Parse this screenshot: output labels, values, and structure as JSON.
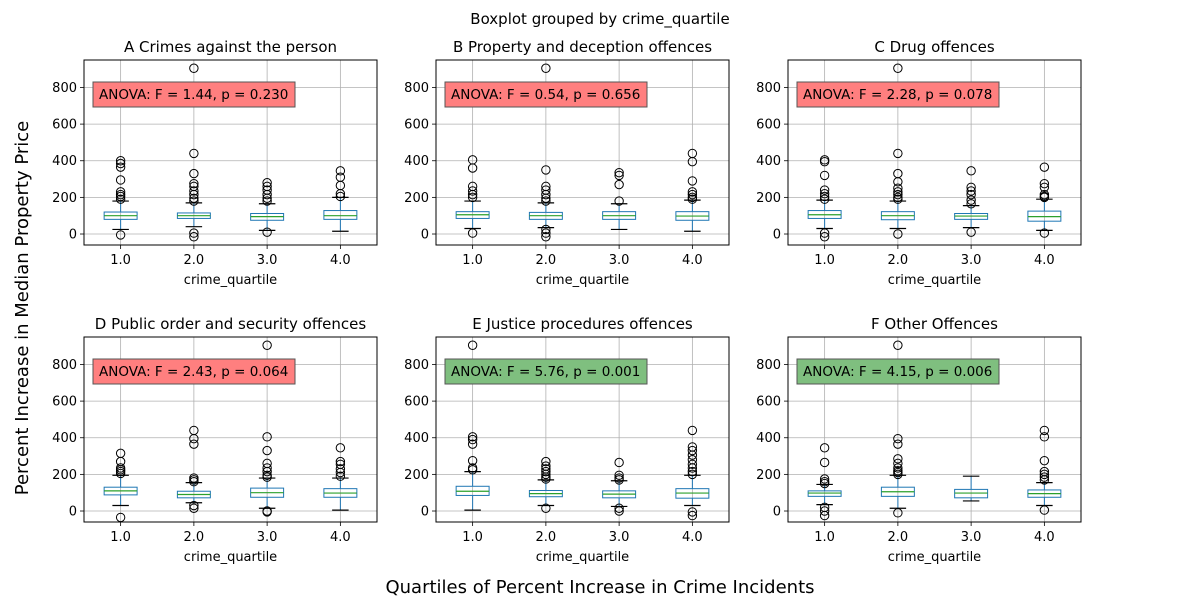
{
  "figure": {
    "suptitle": "Boxplot grouped by crime_quartile",
    "supylabel": "Percent Increase in Median Property Price",
    "supxlabel": "Quartiles of Percent Increase in Crime Incidents"
  },
  "colors": {
    "box": "#1f77b4",
    "median": "#2ca02c",
    "whisker": "#000000",
    "grid": "#b0b0b0",
    "anova_nonsig": "#ff7f7f",
    "anova_sig": "#7fbf7f"
  },
  "chart_data": [
    {
      "type": "box",
      "title": "A Crimes against the person",
      "xlabel": "crime_quartile",
      "categories": [
        "1.0",
        "2.0",
        "3.0",
        "4.0"
      ],
      "ylim": [
        -60,
        950
      ],
      "yticks": [
        0,
        200,
        400,
        600,
        800
      ],
      "grid": true,
      "annotation": "ANOVA: F = 1.44, p = 0.230",
      "significant": false,
      "boxes": [
        {
          "whislo": 25,
          "q1": 80,
          "med": 100,
          "q3": 120,
          "whishi": 180,
          "fliers": [
            -5,
            190,
            205,
            215,
            230,
            295,
            365,
            385,
            400
          ]
        },
        {
          "whislo": 40,
          "q1": 85,
          "med": 100,
          "q3": 115,
          "whishi": 170,
          "fliers": [
            -15,
            5,
            180,
            195,
            215,
            235,
            260,
            275,
            330,
            440,
            905
          ]
        },
        {
          "whislo": 20,
          "q1": 75,
          "med": 95,
          "q3": 112,
          "whishi": 165,
          "fliers": [
            10,
            180,
            195,
            215,
            240,
            260,
            280
          ]
        },
        {
          "whislo": 15,
          "q1": 80,
          "med": 100,
          "q3": 128,
          "whishi": 200,
          "fliers": [
            205,
            220,
            265,
            310,
            345
          ]
        }
      ]
    },
    {
      "type": "box",
      "title": "B Property and deception offences",
      "xlabel": "crime_quartile",
      "categories": [
        "1.0",
        "2.0",
        "3.0",
        "4.0"
      ],
      "ylim": [
        -60,
        950
      ],
      "yticks": [
        0,
        200,
        400,
        600,
        800
      ],
      "grid": true,
      "annotation": "ANOVA: F = 0.54, p = 0.656",
      "significant": false,
      "boxes": [
        {
          "whislo": 30,
          "q1": 85,
          "med": 105,
          "q3": 122,
          "whishi": 180,
          "fliers": [
            5,
            200,
            215,
            235,
            260,
            360,
            405
          ]
        },
        {
          "whislo": 35,
          "q1": 80,
          "med": 100,
          "q3": 118,
          "whishi": 170,
          "fliers": [
            -15,
            5,
            25,
            180,
            195,
            215,
            240,
            260,
            350,
            905
          ]
        },
        {
          "whislo": 25,
          "q1": 80,
          "med": 100,
          "q3": 122,
          "whishi": 165,
          "fliers": [
            180,
            270,
            320,
            335
          ]
        },
        {
          "whislo": 15,
          "q1": 75,
          "med": 98,
          "q3": 122,
          "whishi": 185,
          "fliers": [
            190,
            200,
            215,
            230,
            290,
            395,
            440
          ]
        }
      ]
    },
    {
      "type": "box",
      "title": "C Drug offences",
      "xlabel": "crime_quartile",
      "categories": [
        "1.0",
        "2.0",
        "3.0",
        "4.0"
      ],
      "ylim": [
        -60,
        950
      ],
      "yticks": [
        0,
        200,
        400,
        600,
        800
      ],
      "grid": true,
      "annotation": "ANOVA: F = 2.28, p = 0.078",
      "significant": false,
      "boxes": [
        {
          "whislo": 30,
          "q1": 85,
          "med": 105,
          "q3": 128,
          "whishi": 185,
          "fliers": [
            -15,
            5,
            190,
            205,
            220,
            240,
            320,
            395,
            405
          ]
        },
        {
          "whislo": 30,
          "q1": 78,
          "med": 100,
          "q3": 122,
          "whishi": 180,
          "fliers": [
            0,
            190,
            200,
            215,
            230,
            250,
            285,
            330,
            440,
            905
          ]
        },
        {
          "whislo": 35,
          "q1": 80,
          "med": 98,
          "q3": 112,
          "whishi": 155,
          "fliers": [
            10,
            165,
            185,
            215,
            235,
            255,
            345
          ]
        },
        {
          "whislo": 20,
          "q1": 70,
          "med": 95,
          "q3": 125,
          "whishi": 190,
          "fliers": [
            5,
            200,
            205,
            215,
            255,
            275,
            365
          ]
        }
      ]
    },
    {
      "type": "box",
      "title": "D Public order and security offences",
      "xlabel": "crime_quartile",
      "categories": [
        "1.0",
        "2.0",
        "3.0",
        "4.0"
      ],
      "ylim": [
        -60,
        950
      ],
      "yticks": [
        0,
        200,
        400,
        600,
        800
      ],
      "grid": true,
      "annotation": "ANOVA: F = 2.43, p = 0.064",
      "significant": false,
      "boxes": [
        {
          "whislo": 30,
          "q1": 88,
          "med": 110,
          "q3": 130,
          "whishi": 195,
          "fliers": [
            -35,
            205,
            215,
            225,
            235,
            270,
            315
          ]
        },
        {
          "whislo": 45,
          "q1": 72,
          "med": 90,
          "q3": 108,
          "whishi": 155,
          "fliers": [
            15,
            30,
            160,
            170,
            180,
            365,
            395,
            440
          ]
        },
        {
          "whislo": 15,
          "q1": 75,
          "med": 100,
          "q3": 125,
          "whishi": 180,
          "fliers": [
            -5,
            0,
            185,
            195,
            215,
            235,
            260,
            330,
            405,
            905
          ]
        },
        {
          "whislo": 5,
          "q1": 75,
          "med": 98,
          "q3": 122,
          "whishi": 180,
          "fliers": [
            190,
            210,
            230,
            255,
            270,
            345
          ]
        }
      ]
    },
    {
      "type": "box",
      "title": "E Justice procedures offences",
      "xlabel": "crime_quartile",
      "categories": [
        "1.0",
        "2.0",
        "3.0",
        "4.0"
      ],
      "ylim": [
        -60,
        950
      ],
      "yticks": [
        0,
        200,
        400,
        600,
        800
      ],
      "grid": true,
      "annotation": "ANOVA: F = 5.76, p = 0.001",
      "significant": true,
      "boxes": [
        {
          "whislo": 5,
          "q1": 85,
          "med": 108,
          "q3": 135,
          "whishi": 215,
          "fliers": [
            225,
            235,
            275,
            365,
            390,
            405,
            905
          ]
        },
        {
          "whislo": 30,
          "q1": 78,
          "med": 95,
          "q3": 112,
          "whishi": 170,
          "fliers": [
            15,
            175,
            185,
            200,
            215,
            230,
            245,
            270
          ]
        },
        {
          "whislo": 25,
          "q1": 72,
          "med": 92,
          "q3": 110,
          "whishi": 165,
          "fliers": [
            0,
            15,
            170,
            180,
            195,
            265
          ]
        },
        {
          "whislo": 30,
          "q1": 70,
          "med": 98,
          "q3": 122,
          "whishi": 195,
          "fliers": [
            -25,
            -5,
            200,
            215,
            235,
            255,
            280,
            305,
            330,
            350,
            440
          ]
        }
      ]
    },
    {
      "type": "box",
      "title": "F Other Offences",
      "xlabel": "crime_quartile",
      "categories": [
        "1.0",
        "2.0",
        "3.0",
        "4.0"
      ],
      "ylim": [
        -60,
        950
      ],
      "yticks": [
        0,
        200,
        400,
        600,
        800
      ],
      "grid": true,
      "annotation": "ANOVA: F = 4.15, p = 0.006",
      "significant": true,
      "boxes": [
        {
          "whislo": 35,
          "q1": 80,
          "med": 98,
          "q3": 110,
          "whishi": 145,
          "fliers": [
            -25,
            0,
            20,
            150,
            160,
            175,
            265,
            345
          ]
        },
        {
          "whislo": 15,
          "q1": 80,
          "med": 105,
          "q3": 130,
          "whishi": 195,
          "fliers": [
            -10,
            200,
            210,
            220,
            235,
            260,
            285,
            365,
            395,
            905
          ]
        },
        {
          "whislo": 55,
          "q1": 72,
          "med": 98,
          "q3": 118,
          "whishi": 190,
          "fliers": []
        },
        {
          "whislo": 30,
          "q1": 75,
          "med": 95,
          "q3": 115,
          "whishi": 155,
          "fliers": [
            5,
            170,
            185,
            200,
            215,
            275,
            405,
            440
          ]
        }
      ]
    }
  ]
}
